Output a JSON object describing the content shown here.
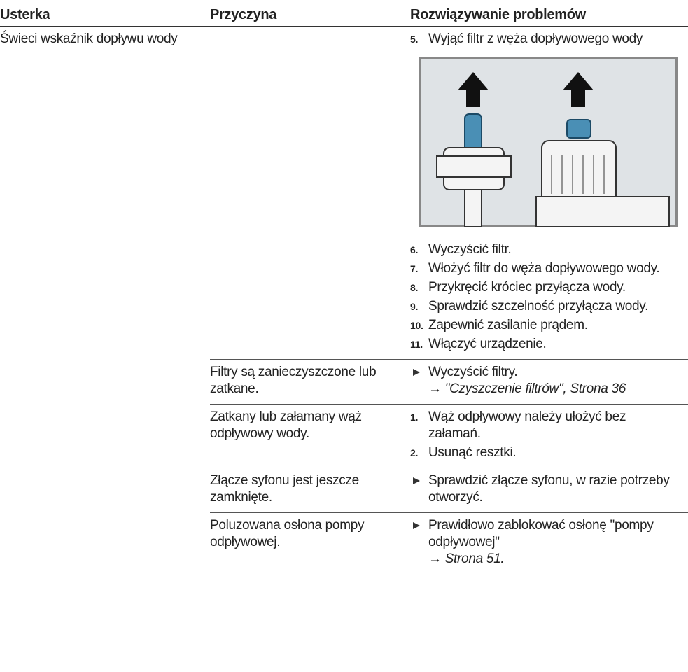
{
  "header": {
    "columns": [
      "Usterka",
      "Przyczyna",
      "Rozwiązywanie problemów"
    ]
  },
  "table": {
    "fault": "Świeci wskaźnik dopływu wody",
    "rows": [
      {
        "steps": [
          {
            "number": "5.",
            "text": "Wyjąć filtr z węża dopływowego wody"
          }
        ],
        "steps_after_figure": [
          {
            "number": "6.",
            "text": "Wyczyścić filtr."
          },
          {
            "number": "7.",
            "text": "Włożyć filtr do węża dopływowego wody."
          },
          {
            "number": "8.",
            "text": "Przykręcić króciec przyłącza wody."
          },
          {
            "number": "9.",
            "text": "Sprawdzić szczelność przyłącza wody."
          },
          {
            "number": "10.",
            "text": "Zapewnić zasilanie prądem."
          },
          {
            "number": "11.",
            "text": "Włączyć urządzenie."
          }
        ]
      },
      {
        "cause": "Filtry są zanieczyszczone lub zatkane.",
        "actions": [
          {
            "text": "Wyczyścić filtry.",
            "ref": "→ \"Czyszczenie filtrów\", Strona 36"
          }
        ]
      },
      {
        "cause": "Zatkany lub załamany wąż odpływowy wody.",
        "steps": [
          {
            "number": "1.",
            "text": "Wąż odpływowy należy ułożyć bez załamań."
          },
          {
            "number": "2.",
            "text": "Usunąć resztki."
          }
        ]
      },
      {
        "cause": "Złącze syfonu jest jeszcze zamknięte.",
        "actions": [
          {
            "text": "Sprawdzić złącze syfonu, w razie potrzeby otworzyć."
          }
        ]
      },
      {
        "cause": "Poluzowana osłona pompy odpływowej.",
        "actions": [
          {
            "text": "Prawidłowo zablokować osłonę \"pompy odpływowej\"",
            "ref": "→ Strona 51."
          }
        ]
      }
    ]
  }
}
